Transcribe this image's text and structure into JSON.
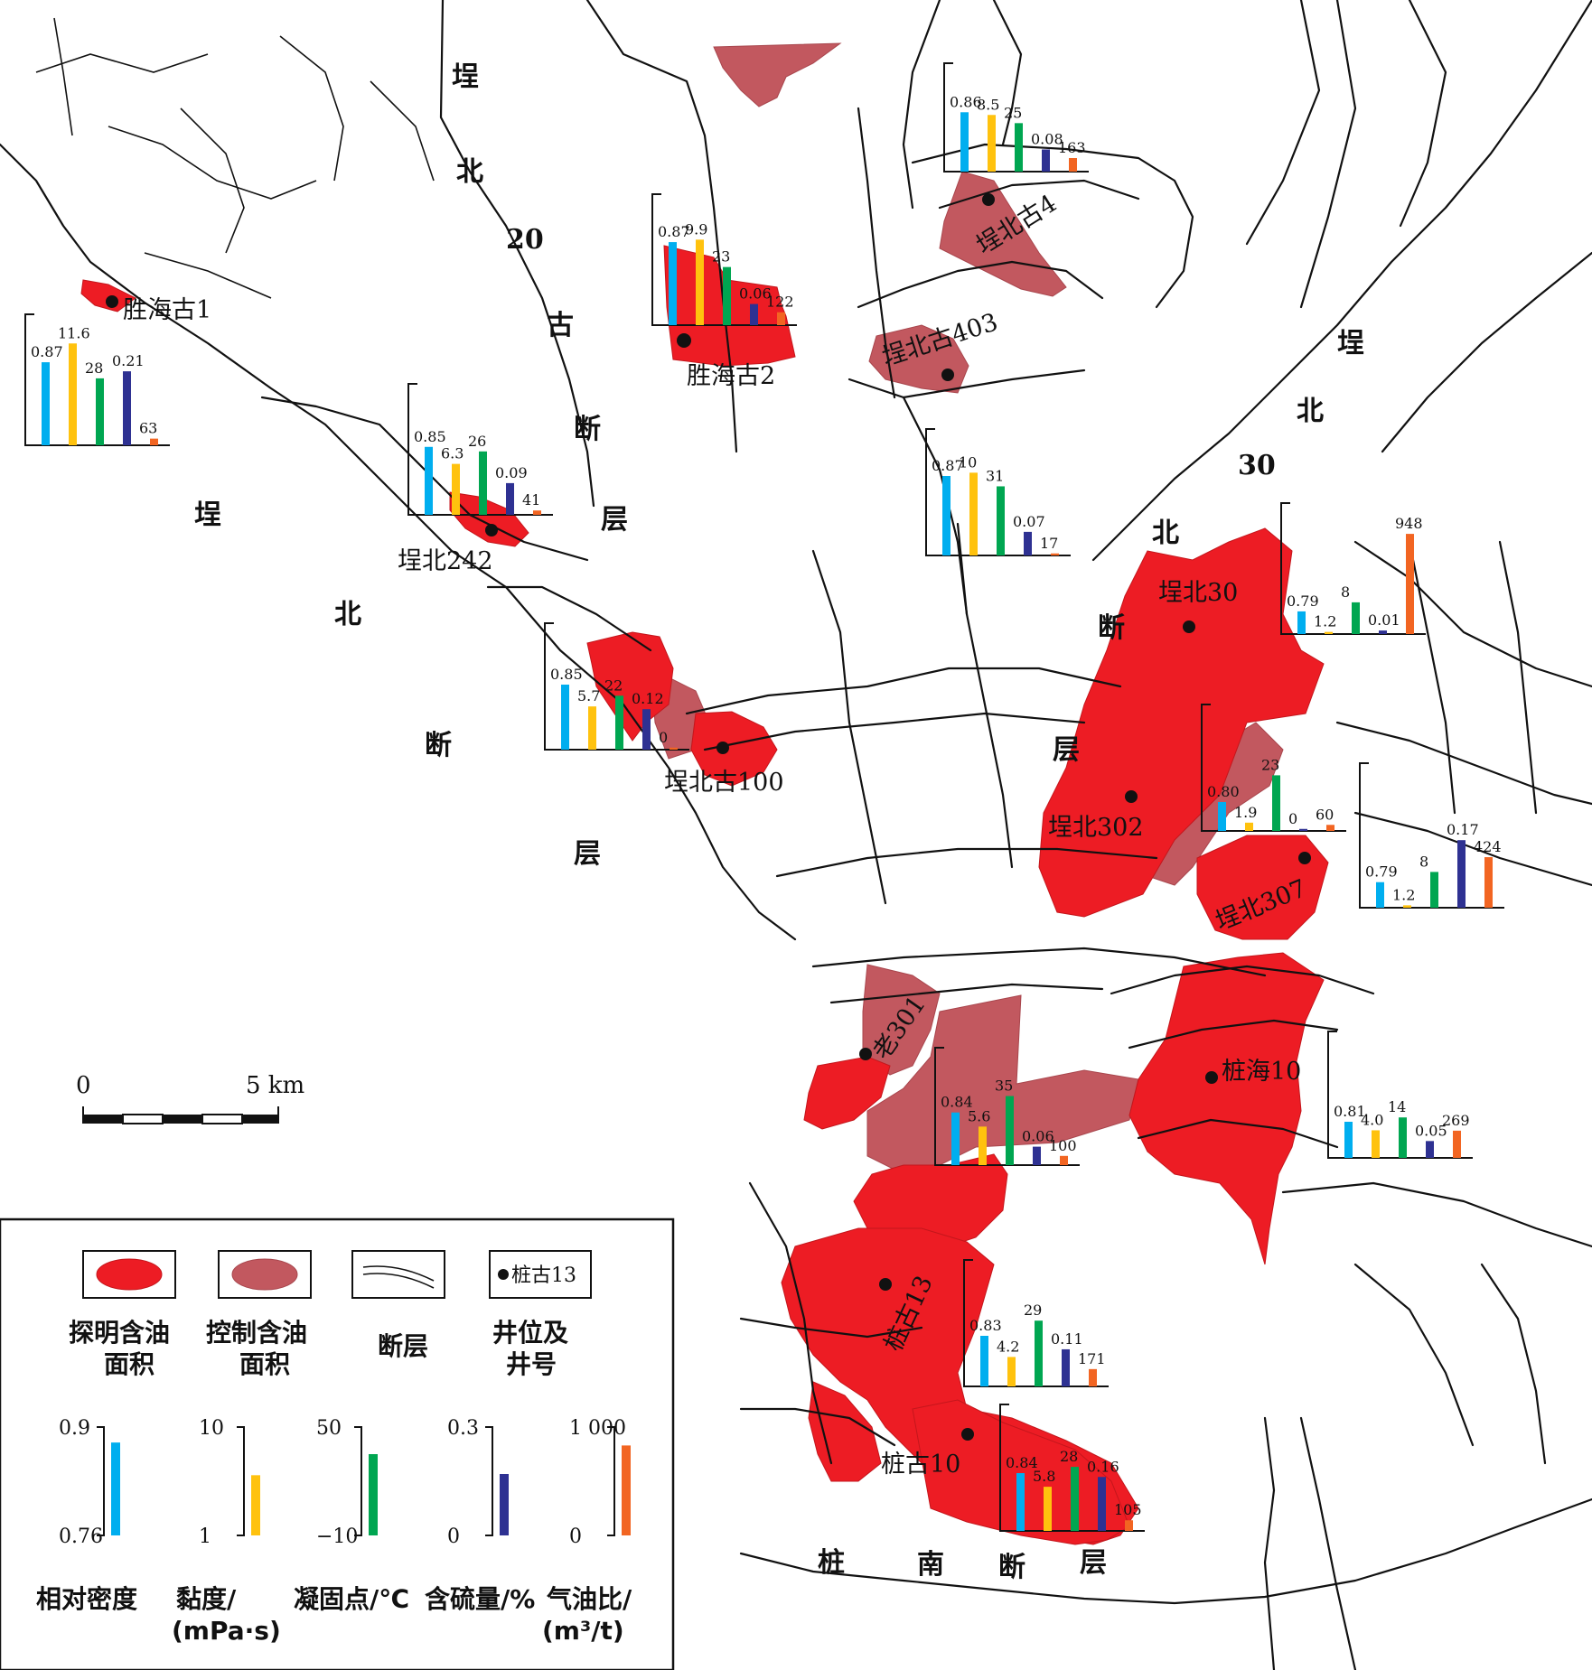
{
  "colors": {
    "explored_area": "#ed1c24",
    "controlled_area": "#c2585f",
    "density": "#00aeef",
    "viscosity": "#ffc20e",
    "pour_point": "#00a651",
    "sulfur": "#2e3192",
    "gas_oil_ratio": "#f26522"
  },
  "fault_labels": [
    {
      "id": "f1",
      "text": "埕"
    },
    {
      "id": "f2",
      "text": "北"
    },
    {
      "id": "f3",
      "text": "20"
    },
    {
      "id": "f4",
      "text": "古"
    },
    {
      "id": "f5",
      "text": "断"
    },
    {
      "id": "f6",
      "text": "层"
    },
    {
      "id": "f7",
      "text": "埕"
    },
    {
      "id": "f8",
      "text": "北"
    },
    {
      "id": "f9",
      "text": "断"
    },
    {
      "id": "f10",
      "text": "层"
    },
    {
      "id": "f11",
      "text": "埕"
    },
    {
      "id": "f12",
      "text": "北"
    },
    {
      "id": "f13",
      "text": "30"
    },
    {
      "id": "f14",
      "text": "北"
    },
    {
      "id": "f15",
      "text": "断"
    },
    {
      "id": "f16",
      "text": "层"
    },
    {
      "id": "f17",
      "text": "桩"
    },
    {
      "id": "f18",
      "text": "南"
    },
    {
      "id": "f19",
      "text": "断"
    },
    {
      "id": "f20",
      "text": "层"
    }
  ],
  "wells": [
    {
      "name": "胜海古1"
    },
    {
      "name": "胜海古2"
    },
    {
      "name": "埕北古4"
    },
    {
      "name": "埕北古403"
    },
    {
      "name": "埕北242"
    },
    {
      "name": "埕北古100"
    },
    {
      "name": "埕北30"
    },
    {
      "name": "埕北302"
    },
    {
      "name": "埕北307"
    },
    {
      "name": "老301"
    },
    {
      "name": "桩海10"
    },
    {
      "name": "桩古13"
    },
    {
      "name": "桩古10"
    }
  ],
  "chart_data": [
    {
      "type": "bar",
      "categories": [
        "相对密度",
        "黏度",
        "凝固点",
        "含硫量",
        "气油比"
      ],
      "values": [
        0.87,
        11.6,
        28,
        0.21,
        63
      ],
      "labels": [
        "0.87",
        "11.6",
        "28",
        "0.21",
        "63"
      ]
    },
    {
      "type": "bar",
      "categories": [
        "相对密度",
        "黏度",
        "凝固点",
        "含硫量",
        "气油比"
      ],
      "values": [
        0.85,
        6.3,
        26,
        0.09,
        41
      ],
      "labels": [
        "0.85",
        "6.3",
        "26",
        "0.09",
        "41"
      ]
    },
    {
      "type": "bar",
      "categories": [
        "相对密度",
        "黏度",
        "凝固点",
        "含硫量",
        "气油比"
      ],
      "values": [
        0.87,
        9.9,
        23,
        0.06,
        122
      ],
      "labels": [
        "0.87",
        "9.9",
        "23",
        "0.06",
        "122"
      ]
    },
    {
      "type": "bar",
      "categories": [
        "相对密度",
        "黏度",
        "凝固点",
        "含硫量",
        "气油比"
      ],
      "values": [
        0.86,
        8.5,
        25,
        0.08,
        163
      ],
      "labels": [
        "0.86",
        "8.5",
        "25",
        "0.08",
        "163"
      ]
    },
    {
      "type": "bar",
      "categories": [
        "相对密度",
        "黏度",
        "凝固点",
        "含硫量",
        "气油比"
      ],
      "values": [
        0.87,
        10,
        31,
        0.07,
        17
      ],
      "labels": [
        "0.87",
        "10",
        "31",
        "0.07",
        "17"
      ]
    },
    {
      "type": "bar",
      "categories": [
        "相对密度",
        "黏度",
        "凝固点",
        "含硫量",
        "气油比"
      ],
      "values": [
        0.85,
        5.7,
        22,
        0.12,
        0
      ],
      "labels": [
        "0.85",
        "5.7",
        "22",
        "0.12",
        "0"
      ]
    },
    {
      "type": "bar",
      "categories": [
        "相对密度",
        "黏度",
        "凝固点",
        "含硫量",
        "气油比"
      ],
      "values": [
        0.79,
        1.2,
        8,
        0.01,
        948
      ],
      "labels": [
        "0.79",
        "1.2",
        "8",
        "0.01",
        "948"
      ]
    },
    {
      "type": "bar",
      "categories": [
        "相对密度",
        "黏度",
        "凝固点",
        "含硫量",
        "气油比"
      ],
      "values": [
        0.8,
        1.9,
        23,
        0,
        60
      ],
      "labels": [
        "0.80",
        "1.9",
        "23",
        "0",
        "60"
      ]
    },
    {
      "type": "bar",
      "categories": [
        "相对密度",
        "黏度",
        "凝固点",
        "含硫量",
        "气油比"
      ],
      "values": [
        0.79,
        1.2,
        8,
        0.17,
        424
      ],
      "labels": [
        "0.79",
        "1.2",
        "8",
        "0.17",
        "424"
      ]
    },
    {
      "type": "bar",
      "categories": [
        "相对密度",
        "黏度",
        "凝固点",
        "含硫量",
        "气油比"
      ],
      "values": [
        0.84,
        5.6,
        35,
        0.06,
        100
      ],
      "labels": [
        "0.84",
        "5.6",
        "35",
        "0.06",
        "100"
      ]
    },
    {
      "type": "bar",
      "categories": [
        "相对密度",
        "黏度",
        "凝固点",
        "含硫量",
        "气油比"
      ],
      "values": [
        0.81,
        4.0,
        14,
        0.05,
        269
      ],
      "labels": [
        "0.81",
        "4.0",
        "14",
        "0.05",
        "269"
      ]
    },
    {
      "type": "bar",
      "categories": [
        "相对密度",
        "黏度",
        "凝固点",
        "含硫量",
        "气油比"
      ],
      "values": [
        0.83,
        4.2,
        29,
        0.11,
        171
      ],
      "labels": [
        "0.83",
        "4.2",
        "29",
        "0.11",
        "171"
      ]
    },
    {
      "type": "bar",
      "categories": [
        "相对密度",
        "黏度",
        "凝固点",
        "含硫量",
        "气油比"
      ],
      "values": [
        0.84,
        5.8,
        28,
        0.16,
        105
      ],
      "labels": [
        "0.84",
        "5.8",
        "28",
        "0.16",
        "105"
      ]
    }
  ],
  "scale_bar": {
    "start_label": "0",
    "end_label": "5 km"
  },
  "legend": {
    "explored": "探明含油面积",
    "explored_l1": "探明含油",
    "explored_l2": "面积",
    "controlled_l1": "控制含油",
    "controlled_l2": "面积",
    "fault": "断层",
    "well_symbol_label": "桩古13",
    "well_l1": "井位及",
    "well_l2": "井号"
  },
  "scales": [
    {
      "key": "density",
      "top": "0.9",
      "bottom": "0.76",
      "label": "相对密度",
      "label2": "",
      "value": 0.88,
      "min": 0.76,
      "max": 0.9
    },
    {
      "key": "viscosity",
      "top": "10",
      "bottom": "1",
      "label": "黏度/",
      "label2": "(mPa·s)",
      "value": 6,
      "min": 1,
      "max": 10
    },
    {
      "key": "pour_point",
      "top": "50",
      "bottom": "−10",
      "label": "凝固点/℃",
      "label2": "",
      "value": 35,
      "min": -10,
      "max": 50
    },
    {
      "key": "sulfur",
      "top": "0.3",
      "bottom": "0",
      "label": "含硫量/%",
      "label2": "",
      "value": 0.17,
      "min": 0,
      "max": 0.3
    },
    {
      "key": "gas_oil_ratio",
      "top": "1 000",
      "bottom": "0",
      "label": "气油比/",
      "label2": "(m³/t)",
      "value": 830,
      "min": 0,
      "max": 1000
    }
  ]
}
